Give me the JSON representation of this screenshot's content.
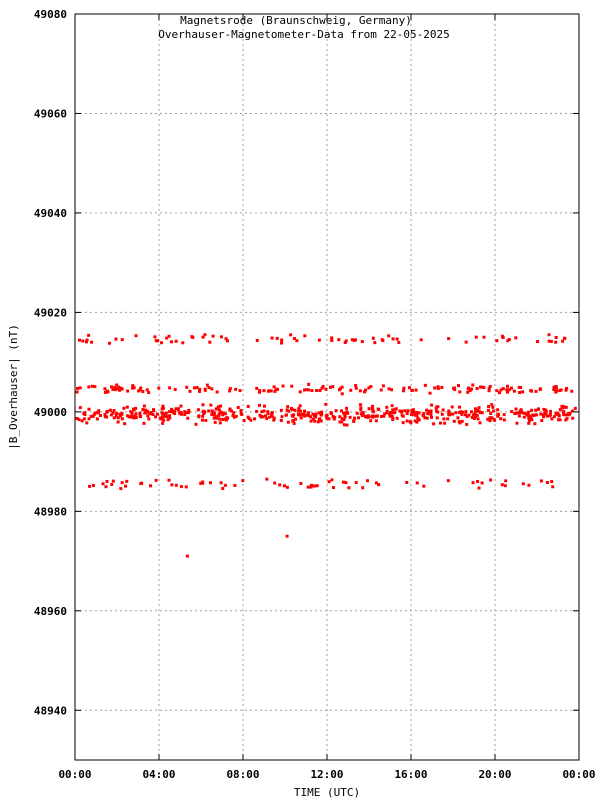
{
  "chart_data": {
    "type": "scatter",
    "title": "Magnetsrode (Braunschweig, Germany)",
    "subtitle": "Overhauser-Magnetometer-Data from 22-05-2025",
    "xlabel": "TIME (UTC)",
    "ylabel": "|B_Overhauser| (nT)",
    "xlim": [
      0,
      24
    ],
    "ylim": [
      48930,
      49080
    ],
    "x_ticks": [
      0,
      4,
      8,
      12,
      16,
      20,
      24
    ],
    "x_tick_labels": [
      "00:00",
      "04:00",
      "08:00",
      "12:00",
      "16:00",
      "20:00",
      "00:00"
    ],
    "y_ticks": [
      48940,
      48960,
      48980,
      49000,
      49020,
      49040,
      49060,
      49080
    ],
    "y_tick_labels": [
      "48940",
      "48960",
      "48980",
      "49000",
      "49020",
      "49040",
      "49060",
      "49080"
    ],
    "grid": true,
    "marker_color": "#ff0000",
    "series": [
      {
        "bands": [
          {
            "center": 48999.5,
            "spread": 2.5,
            "count": 520
          },
          {
            "center": 49004.5,
            "spread": 1.2,
            "count": 150
          },
          {
            "center": 49014.5,
            "spread": 1.5,
            "count": 75
          },
          {
            "center": 48985.5,
            "spread": 1.5,
            "count": 70
          }
        ],
        "outliers": [
          {
            "x": 5.35,
            "y": 48971
          },
          {
            "x": 10.1,
            "y": 48975
          },
          {
            "x": 0.1,
            "y": 49004
          }
        ]
      }
    ]
  }
}
